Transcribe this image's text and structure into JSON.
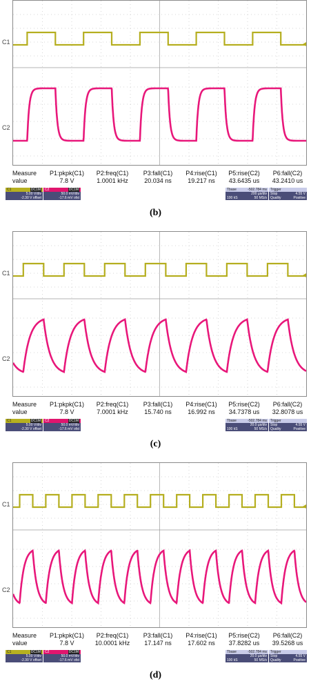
{
  "panels": [
    {
      "caption": "(b)",
      "ch1_label": "C1",
      "ch2_label": "C2",
      "ch1_periods": 5,
      "ch2_periods": 5,
      "ch2_shape": "rounded-square",
      "measurements": {
        "title_line1": "Measure",
        "title_line2": "value",
        "items": [
          {
            "name": "P1:pkpk(C1)",
            "value": "7.8 V"
          },
          {
            "name": "P2:freq(C1)",
            "value": "1.0001 kHz"
          },
          {
            "name": "P3:fall(C1)",
            "value": "20.034 ns"
          },
          {
            "name": "P4:rise(C1)",
            "value": "19.217 ns"
          },
          {
            "name": "P5:rise(C2)",
            "value": "43.6435 us"
          },
          {
            "name": "P6:fall(C2)",
            "value": "43.2410 us"
          }
        ]
      },
      "status": {
        "c1": {
          "label": "C1",
          "tag": "DC1M",
          "vdiv": "5.00 V/div",
          "offset": "-2.30 V offset"
        },
        "c2": {
          "label": "C2",
          "tag": "DC1M",
          "vdiv": "50.0 mV/div",
          "offset": "-17.6 mV ofst"
        },
        "tbase": {
          "label": "Tbase",
          "value": "-502.784 ms",
          "div": "200 µs/div",
          "samples": "100 kS",
          "rate": "50 MS/s"
        },
        "trigger": {
          "label": "Trigger",
          "line1_l": "Stop",
          "line1_r": "4.55 V",
          "line2_l": "Quality",
          "line2_r": "Positive"
        }
      }
    },
    {
      "caption": "(c)",
      "ch1_label": "C1",
      "ch2_label": "C2",
      "ch1_periods": 7,
      "ch2_periods": 7,
      "ch2_shape": "rc-sawtooth",
      "measurements": {
        "title_line1": "Measure",
        "title_line2": "value",
        "items": [
          {
            "name": "P1:pkpk(C1)",
            "value": "7.8 V"
          },
          {
            "name": "P2:freq(C1)",
            "value": "7.0001 kHz"
          },
          {
            "name": "P3:fall(C1)",
            "value": "15.740 ns"
          },
          {
            "name": "P4:rise(C1)",
            "value": "16.992 ns"
          },
          {
            "name": "P5:rise(C2)",
            "value": "34.7378 us"
          },
          {
            "name": "P6:fall(C2)",
            "value": "32.8078 us"
          }
        ]
      },
      "status": {
        "c1": {
          "label": "C1",
          "tag": "DC1M",
          "vdiv": "5.00 V/div",
          "offset": "-2.30 V offset"
        },
        "c2": {
          "label": "C2",
          "tag": "DC1M",
          "vdiv": "50.0 mV/div",
          "offset": "-17.6 mV ofst"
        },
        "tbase": {
          "label": "Tbase",
          "value": "-502.784 ms",
          "div": "20.0 µs/div",
          "samples": "100 kS",
          "rate": "50 MS/s"
        },
        "trigger": {
          "label": "Trigger",
          "line1_l": "Stop",
          "line1_r": "4.55 V",
          "line2_l": "Quality",
          "line2_r": "Positive"
        }
      }
    },
    {
      "caption": "(d)",
      "ch1_label": "C1",
      "ch2_label": "C2",
      "ch1_periods": 11,
      "ch2_periods": 11,
      "ch2_shape": "rc-sawtooth",
      "measurements": {
        "title_line1": "Measure",
        "title_line2": "value",
        "items": [
          {
            "name": "P1:pkpk(C1)",
            "value": "7.8 V"
          },
          {
            "name": "P2:freq(C1)",
            "value": "10.0001 kHz"
          },
          {
            "name": "P3:fall(C1)",
            "value": "17.147 ns"
          },
          {
            "name": "P4:rise(C1)",
            "value": "17.602 ns"
          },
          {
            "name": "P5:rise(C2)",
            "value": "37.8282 us"
          },
          {
            "name": "P6:fall(C2)",
            "value": "39.5268 us"
          }
        ]
      },
      "status": {
        "c1": {
          "label": "C1",
          "tag": "DC1M",
          "vdiv": "5.00 V/div",
          "offset": "-2.30 V offset"
        },
        "c2": {
          "label": "C2",
          "tag": "DC1M",
          "vdiv": "50.0 mV/div",
          "offset": "-17.6 mV ofst"
        },
        "tbase": {
          "label": "Tbase",
          "value": "-502.784 ms",
          "div": "20.0 µs/div",
          "samples": "100 kS",
          "rate": "50 MS/s"
        },
        "trigger": {
          "label": "Trigger",
          "line1_l": "Stop",
          "line1_r": "4.55 V",
          "line2_l": "Quality",
          "line2_r": "Positive"
        }
      }
    }
  ],
  "colors": {
    "c1_trace": "#b5ae1f",
    "c2_trace": "#e8177a",
    "grid": "#9a9a9a",
    "status_bg": "#4a4d78"
  }
}
